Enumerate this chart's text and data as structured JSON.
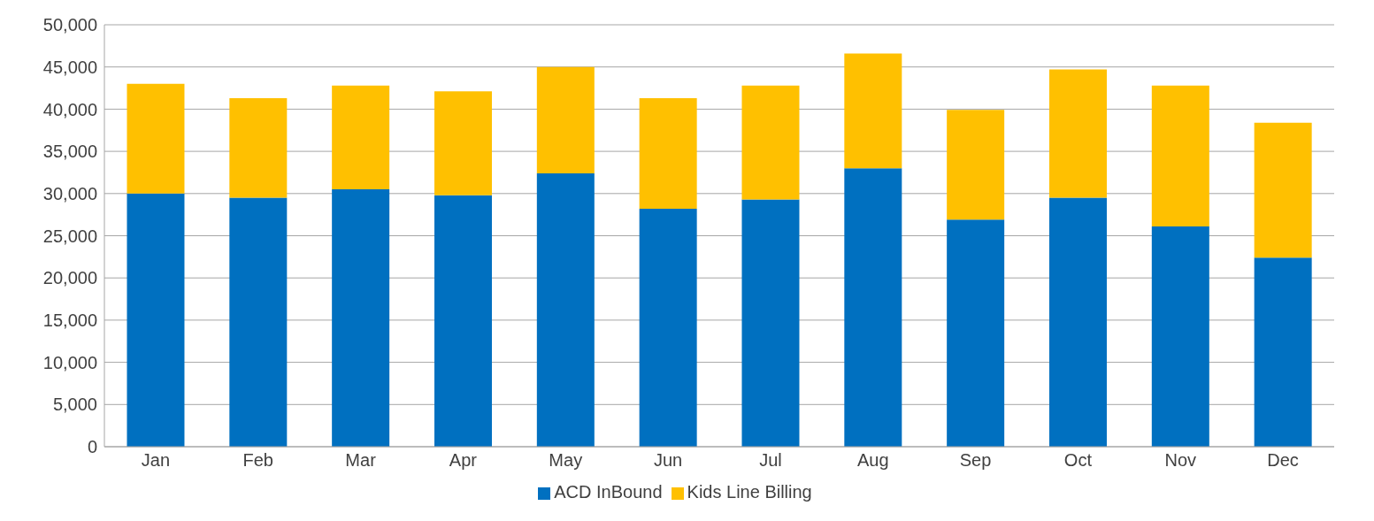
{
  "chart_data": {
    "type": "bar",
    "stacked": true,
    "categories": [
      "Jan",
      "Feb",
      "Mar",
      "Apr",
      "May",
      "Jun",
      "Jul",
      "Aug",
      "Sep",
      "Oct",
      "Nov",
      "Dec"
    ],
    "series": [
      {
        "name": "ACD InBound",
        "color": "#0070c0",
        "values": [
          30000,
          29500,
          30500,
          29800,
          32400,
          28200,
          29300,
          33000,
          26900,
          29500,
          26100,
          22400
        ]
      },
      {
        "name": "Kids Line Billing",
        "color": "#ffc000",
        "values": [
          13000,
          11800,
          12300,
          12300,
          12600,
          13100,
          13500,
          13600,
          13000,
          15200,
          16700,
          16000
        ]
      }
    ],
    "ylim": [
      0,
      50000
    ],
    "yticks": [
      0,
      {
        "value": 5000,
        "label": "5,000"
      },
      {
        "value": 10000,
        "label": "10,000"
      },
      {
        "value": 15000,
        "label": "15,000"
      },
      {
        "value": 20000,
        "label": "20,000"
      },
      {
        "value": 25000,
        "label": "25,000"
      },
      {
        "value": 30000,
        "label": "30,000"
      },
      {
        "value": 35000,
        "label": "35,000"
      },
      {
        "value": 40000,
        "label": "40,000"
      },
      {
        "value": 45000,
        "label": "45,000"
      },
      {
        "value": 50000,
        "label": "50,000"
      }
    ],
    "grid": "y",
    "legend": "bottom"
  }
}
